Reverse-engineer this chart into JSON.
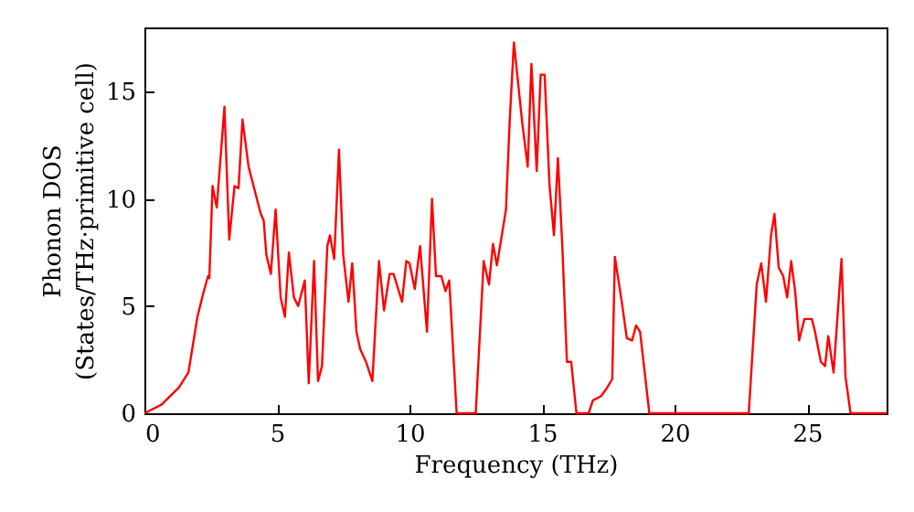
{
  "chart_data": {
    "type": "line",
    "xlabel": "Frequency (THz)",
    "ylabel": "Phonon DOS\n(States/THz·primitive cell)",
    "x": [
      0,
      0.64,
      1.3,
      1.66,
      2.0,
      2.2,
      2.4,
      2.45,
      2.57,
      2.73,
      3.02,
      3.2,
      3.4,
      3.55,
      3.7,
      3.93,
      4.16,
      4.39,
      4.5,
      4.6,
      4.77,
      4.95,
      5.14,
      5.3,
      5.45,
      5.64,
      5.8,
      6.05,
      6.2,
      6.4,
      6.55,
      6.7,
      6.9,
      7.0,
      7.16,
      7.34,
      7.5,
      7.7,
      7.84,
      8.0,
      8.14,
      8.36,
      8.6,
      8.85,
      9.04,
      9.25,
      9.4,
      9.72,
      9.88,
      10.0,
      10.2,
      10.4,
      10.66,
      10.85,
      11.0,
      11.2,
      11.36,
      11.5,
      11.78,
      12.5,
      12.8,
      13.0,
      13.15,
      13.3,
      13.64,
      13.78,
      13.94,
      14.25,
      14.46,
      14.6,
      14.8,
      14.95,
      15.1,
      15.28,
      15.45,
      15.6,
      15.77,
      15.94,
      16.1,
      16.3,
      16.76,
      16.92,
      17.23,
      17.46,
      17.65,
      17.75,
      18.02,
      18.2,
      18.4,
      18.55,
      18.7,
      19.05,
      22.8,
      23.1,
      23.27,
      23.45,
      23.64,
      23.77,
      23.93,
      24.1,
      24.25,
      24.4,
      24.55,
      24.7,
      24.9,
      25.18,
      25.3,
      25.52,
      25.68,
      25.8,
      26.0,
      26.3,
      26.45,
      26.64,
      28
    ],
    "series": [
      {
        "color": "#ff0000",
        "values": [
          0,
          0.4,
          1.2,
          1.9,
          4.5,
          5.5,
          6.4,
          6.3,
          10.6,
          9.6,
          14.3,
          8.1,
          10.6,
          10.5,
          13.7,
          11.5,
          10.4,
          9.3,
          9.0,
          7.4,
          6.5,
          9.5,
          5.4,
          4.5,
          7.5,
          5.4,
          5.0,
          6.2,
          1.4,
          7.1,
          1.5,
          2.2,
          7.8,
          8.3,
          7.2,
          12.3,
          7.4,
          5.2,
          7.0,
          3.8,
          3.0,
          2.4,
          1.5,
          7.1,
          4.8,
          6.5,
          6.5,
          5.2,
          7.1,
          7.0,
          5.8,
          7.8,
          3.8,
          10.0,
          6.4,
          6.4,
          5.7,
          6.2,
          0,
          0,
          7.1,
          6.0,
          7.9,
          6.9,
          9.5,
          13.6,
          17.3,
          13.6,
          11.5,
          16.3,
          11.3,
          15.8,
          15.8,
          10.7,
          8.3,
          11.9,
          7.7,
          2.4,
          2.4,
          0,
          0,
          0.6,
          0.8,
          1.2,
          1.6,
          7.3,
          5.1,
          3.5,
          3.4,
          4.1,
          3.8,
          0,
          0,
          6.0,
          7.0,
          5.2,
          8.3,
          9.3,
          6.8,
          6.4,
          5.4,
          7.1,
          5.7,
          3.4,
          4.4,
          4.4,
          3.8,
          2.4,
          2.2,
          3.6,
          1.9,
          7.2,
          1.7,
          0,
          0
        ]
      }
    ],
    "xlim": [
      0,
      28
    ],
    "xticks": [
      0,
      5,
      10,
      15,
      20,
      25
    ],
    "ylim": [
      0,
      18
    ],
    "yticks": [
      0,
      5,
      10,
      15
    ],
    "grid": false,
    "line_style": "solid",
    "marker": "none"
  }
}
